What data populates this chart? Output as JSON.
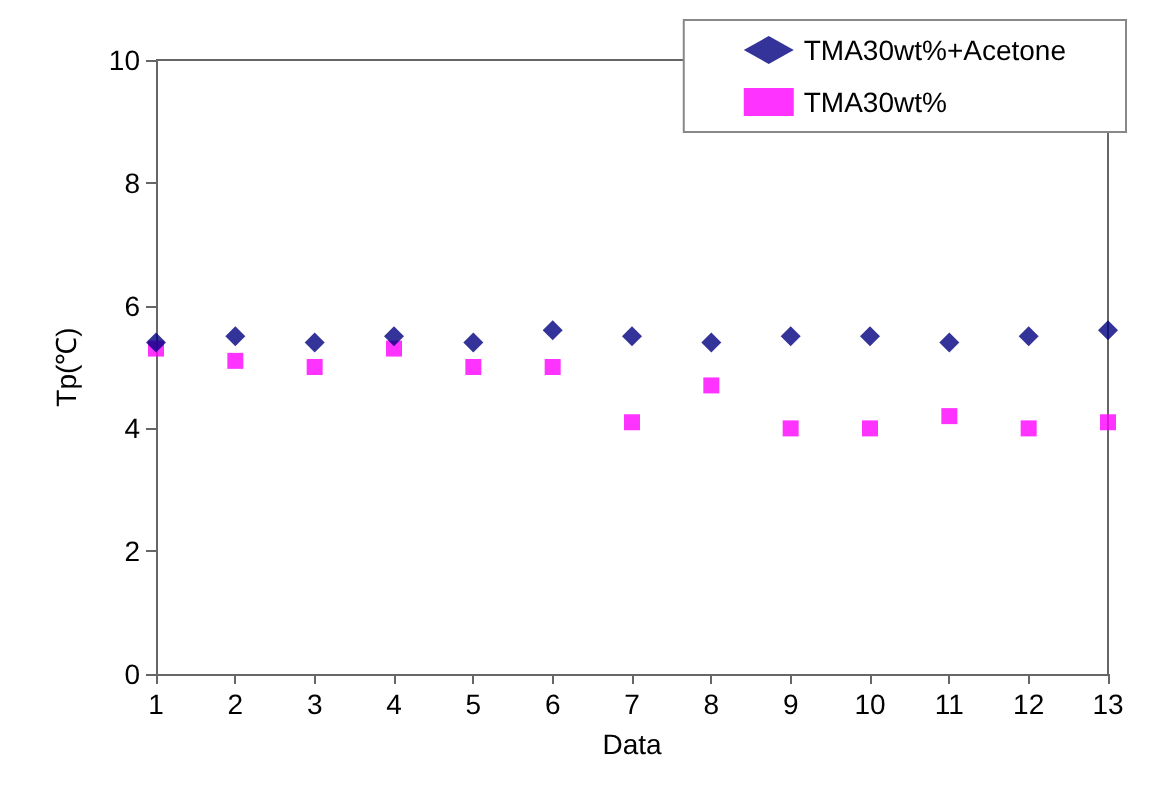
{
  "chart_data": {
    "type": "scatter",
    "xlabel": "Data",
    "ylabel": "Tp(℃)",
    "x": [
      1,
      2,
      3,
      4,
      5,
      6,
      7,
      8,
      9,
      10,
      11,
      12,
      13
    ],
    "series": [
      {
        "name": "TMA30wt%+Acetone",
        "color": "#000080",
        "marker": "diamond",
        "values": [
          5.4,
          5.5,
          5.4,
          5.5,
          5.4,
          5.6,
          5.5,
          5.4,
          5.5,
          5.5,
          5.4,
          5.5,
          5.6
        ]
      },
      {
        "name": "TMA30wt%",
        "color": "#ff00ff",
        "marker": "square",
        "values": [
          5.3,
          5.1,
          5.0,
          5.3,
          5.0,
          5.0,
          4.1,
          4.7,
          4.0,
          4.0,
          4.2,
          4.0,
          4.1
        ]
      }
    ],
    "xlim": [
      1,
      13
    ],
    "xticks": [
      1,
      2,
      3,
      4,
      5,
      6,
      7,
      8,
      9,
      10,
      11,
      12,
      13
    ],
    "ylim": [
      0,
      10
    ],
    "yticks": [
      0,
      2,
      4,
      6,
      8,
      10
    ],
    "grid": false,
    "legend": "top right"
  }
}
